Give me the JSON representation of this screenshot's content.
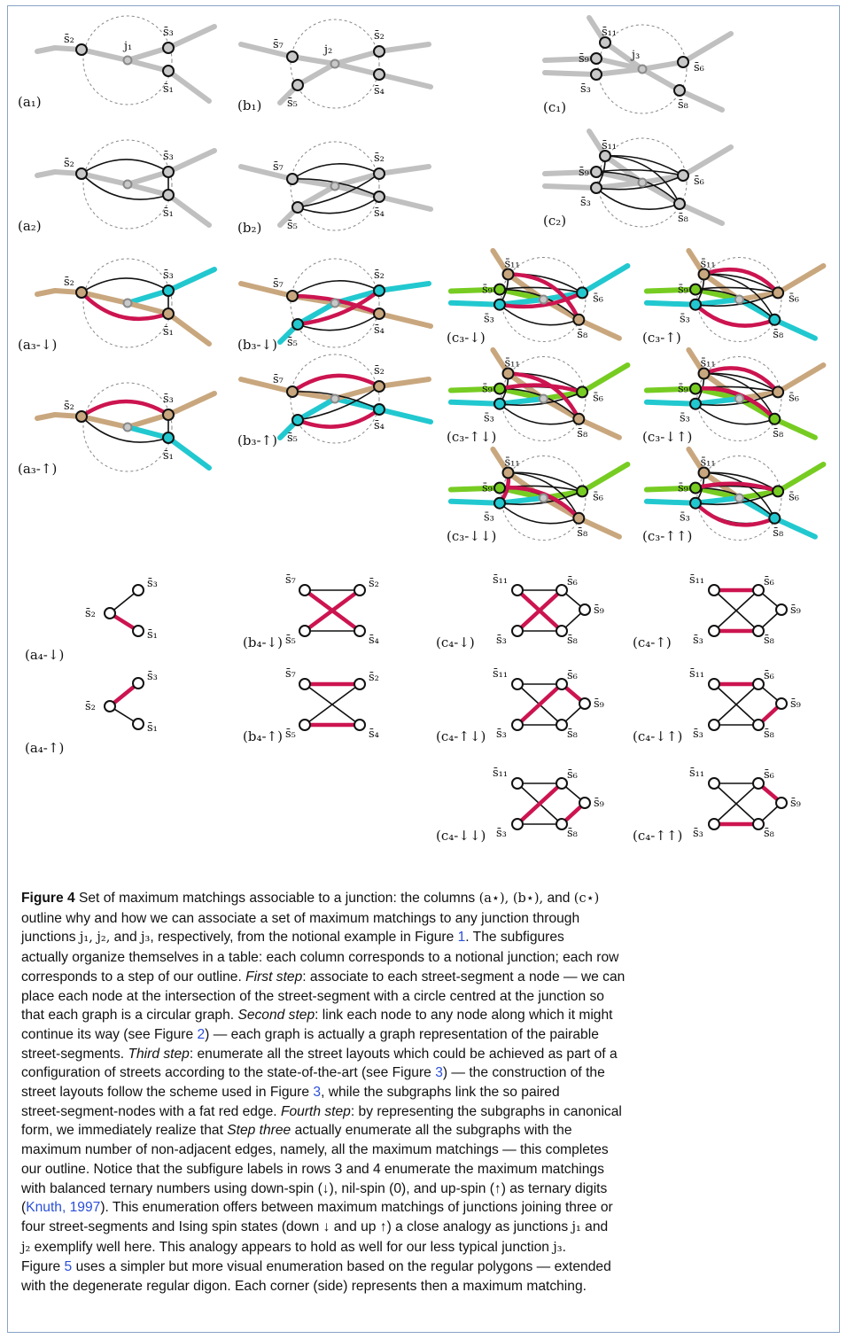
{
  "figure": {
    "panels": [
      {
        "id": "a1",
        "label": "(a₁)",
        "junction": "j₁",
        "nodes": [
          "s̄₂",
          "s̄₃",
          "s̄₁"
        ]
      },
      {
        "id": "b1",
        "label": "(b₁)",
        "junction": "j₂",
        "nodes": [
          "s̄₇",
          "s̄₂",
          "s̄₄",
          "s̄₅"
        ]
      },
      {
        "id": "c1",
        "label": "(c₁)",
        "junction": "j₃",
        "nodes": [
          "s̄₁₁",
          "s̄₉",
          "s̄₃",
          "s̄₆",
          "s̄₈"
        ]
      },
      {
        "id": "a2",
        "label": "(a₂)",
        "nodes": [
          "s̄₂",
          "s̄₃",
          "s̄₁"
        ]
      },
      {
        "id": "b2",
        "label": "(b₂)",
        "nodes": [
          "s̄₇",
          "s̄₂",
          "s̄₄",
          "s̄₅"
        ]
      },
      {
        "id": "c2",
        "label": "(c₂)",
        "nodes": [
          "s̄₁₁",
          "s̄₉",
          "s̄₃",
          "s̄₆",
          "s̄₈"
        ]
      },
      {
        "id": "a3d",
        "label": "(a₃-↓)",
        "nodes": [
          "s̄₂",
          "s̄₃",
          "s̄₁"
        ]
      },
      {
        "id": "b3d",
        "label": "(b₃-↓)",
        "nodes": [
          "s̄₇",
          "s̄₂",
          "s̄₄",
          "s̄₅"
        ]
      },
      {
        "id": "c3d",
        "label": "(c₃-↓)",
        "nodes": [
          "s̄₁₁",
          "s̄₉",
          "s̄₃",
          "s̄₆",
          "s̄₈"
        ]
      },
      {
        "id": "c3u",
        "label": "(c₃-↑)",
        "nodes": [
          "s̄₁₁",
          "s̄₉",
          "s̄₃",
          "s̄₆",
          "s̄₈"
        ]
      },
      {
        "id": "a3u",
        "label": "(a₃-↑)",
        "nodes": [
          "s̄₂",
          "s̄₃",
          "s̄₁"
        ]
      },
      {
        "id": "b3u",
        "label": "(b₃-↑)",
        "nodes": [
          "s̄₇",
          "s̄₂",
          "s̄₄",
          "s̄₅"
        ]
      },
      {
        "id": "c3ud",
        "label": "(c₃-↑↓)",
        "nodes": [
          "s̄₁₁",
          "s̄₉",
          "s̄₃",
          "s̄₆",
          "s̄₈"
        ]
      },
      {
        "id": "c3du",
        "label": "(c₃-↓↑)",
        "nodes": [
          "s̄₁₁",
          "s̄₉",
          "s̄₃",
          "s̄₆",
          "s̄₈"
        ]
      },
      {
        "id": "c3dd",
        "label": "(c₃-↓↓)",
        "nodes": [
          "s̄₁₁",
          "s̄₉",
          "s̄₃",
          "s̄₆",
          "s̄₈"
        ]
      },
      {
        "id": "c3uu",
        "label": "(c₃-↑↑)",
        "nodes": [
          "s̄₁₁",
          "s̄₉",
          "s̄₃",
          "s̄₆",
          "s̄₈"
        ]
      },
      {
        "id": "a4d",
        "label": "(a₄-↓)",
        "nodes": [
          "s̄₃",
          "s̄₂",
          "s̄₁"
        ]
      },
      {
        "id": "b4d",
        "label": "(b₄-↓)",
        "nodes": [
          "s̄₇",
          "s̄₂",
          "s̄₅",
          "s̄₄"
        ]
      },
      {
        "id": "c4d",
        "label": "(c₄-↓)",
        "nodes": [
          "s̄₁₁",
          "s̄₆",
          "s̄₉",
          "s̄₃",
          "s̄₈"
        ]
      },
      {
        "id": "c4u",
        "label": "(c₄-↑)",
        "nodes": [
          "s̄₁₁",
          "s̄₆",
          "s̄₉",
          "s̄₃",
          "s̄₈"
        ]
      },
      {
        "id": "a4u",
        "label": "(a₄-↑)",
        "nodes": [
          "s̄₃",
          "s̄₂",
          "s̄₁"
        ]
      },
      {
        "id": "b4u",
        "label": "(b₄-↑)",
        "nodes": [
          "s̄₇",
          "s̄₂",
          "s̄₅",
          "s̄₄"
        ]
      },
      {
        "id": "c4ud",
        "label": "(c₄-↑↓)",
        "nodes": [
          "s̄₁₁",
          "s̄₆",
          "s̄₉",
          "s̄₃",
          "s̄₈"
        ]
      },
      {
        "id": "c4du",
        "label": "(c₄-↓↑)",
        "nodes": [
          "s̄₁₁",
          "s̄₆",
          "s̄₉",
          "s̄₃",
          "s̄₈"
        ]
      },
      {
        "id": "c4dd",
        "label": "(c₄-↓↓)",
        "nodes": [
          "s̄₁₁",
          "s̄₆",
          "s̄₉",
          "s̄₃",
          "s̄₈"
        ]
      },
      {
        "id": "c4uu",
        "label": "(c₄-↑↑)",
        "nodes": [
          "s̄₁₁",
          "s̄₆",
          "s̄₉",
          "s̄₃",
          "s̄₈"
        ]
      }
    ],
    "colors": {
      "street": "#c0c0c0",
      "tan": "#c9a77e",
      "cyan": "#22c8cf",
      "green": "#77cc22",
      "red": "#cc1450",
      "edge": "#111111",
      "circle": "#888888"
    }
  },
  "caption": {
    "lines": [
      [
        {
          "t": "Figure 4",
          "c": "lbl"
        },
        {
          "t": " Set of maximum matchings associable to a junction: the columns "
        },
        {
          "t": "(a⋆), (b⋆),",
          "c": "m"
        },
        {
          "t": " and "
        },
        {
          "t": "(c⋆)",
          "c": "m"
        }
      ],
      [
        {
          "t": "outline why and how we can associate a set of maximum matchings to any junction through"
        }
      ],
      [
        {
          "t": "junctions "
        },
        {
          "t": "j₁, j₂,",
          "c": "m"
        },
        {
          "t": " and "
        },
        {
          "t": "j₃",
          "c": "m"
        },
        {
          "t": ", respectively, from the notional example in Figure "
        },
        {
          "t": "1",
          "c": "ref"
        },
        {
          "t": ". The subfigures"
        }
      ],
      [
        {
          "t": "actually organize themselves in a table: each column corresponds to a notional junction; each row"
        }
      ],
      [
        {
          "t": "corresponds to a step of our outline. "
        },
        {
          "t": "First step",
          "c": "it"
        },
        {
          "t": ": associate to each street-segment a node — we can"
        }
      ],
      [
        {
          "t": "place each node at the intersection of the street-segment with a circle centred at the junction so"
        }
      ],
      [
        {
          "t": "that each graph is a circular graph. "
        },
        {
          "t": "Second step",
          "c": "it"
        },
        {
          "t": ": link each node to any node along which it might"
        }
      ],
      [
        {
          "t": "continue its way (see Figure "
        },
        {
          "t": "2",
          "c": "ref"
        },
        {
          "t": ") — each graph is actually a graph representation of the pairable"
        }
      ],
      [
        {
          "t": "street-segments. "
        },
        {
          "t": "Third step",
          "c": "it"
        },
        {
          "t": ": enumerate all the street layouts which could be achieved as part of a"
        }
      ],
      [
        {
          "t": "configuration of streets according to the state-of-the-art (see Figure "
        },
        {
          "t": "3",
          "c": "ref"
        },
        {
          "t": ") — the construction of the"
        }
      ],
      [
        {
          "t": "street layouts follow the scheme used in Figure "
        },
        {
          "t": "3",
          "c": "ref"
        },
        {
          "t": ", while the subgraphs link the so paired"
        }
      ],
      [
        {
          "t": "street-segment-nodes with a fat red edge. "
        },
        {
          "t": "Fourth step",
          "c": "it"
        },
        {
          "t": ": by representing the subgraphs in canonical"
        }
      ],
      [
        {
          "t": "form, we immediately realize that "
        },
        {
          "t": "Step three",
          "c": "it"
        },
        {
          "t": " actually enumerate all the subgraphs with the"
        }
      ],
      [
        {
          "t": "maximum number of non-adjacent edges, namely, all the maximum matchings — this completes"
        }
      ],
      [
        {
          "t": "our outline. Notice that the subfigure labels in rows 3 and 4 enumerate the maximum matchings"
        }
      ],
      [
        {
          "t": "with balanced ternary numbers using down-spin (↓), nil-spin (0), and up-spin (↑) as ternary digits"
        }
      ],
      [
        {
          "t": "("
        },
        {
          "t": "Knuth, 1997",
          "c": "ref"
        },
        {
          "t": "). This enumeration offers between maximum matchings of junctions joining three or"
        }
      ],
      [
        {
          "t": "four street-segments and Ising spin states (down ↓ and up ↑) a close analogy as junctions "
        },
        {
          "t": "j₁",
          "c": "m"
        },
        {
          "t": " and"
        }
      ],
      [
        {
          "t": "j₂",
          "c": "m"
        },
        {
          "t": " exemplify well here. This analogy appears to hold as well for our less typical junction "
        },
        {
          "t": "j₃",
          "c": "m"
        },
        {
          "t": "."
        }
      ],
      [
        {
          "t": "Figure "
        },
        {
          "t": "5",
          "c": "ref"
        },
        {
          "t": " uses a simpler but more visual enumeration based on the regular polygons — extended"
        }
      ],
      [
        {
          "t": "with the degenerate regular digon. Each corner (side) represents then a maximum matching."
        }
      ]
    ]
  }
}
